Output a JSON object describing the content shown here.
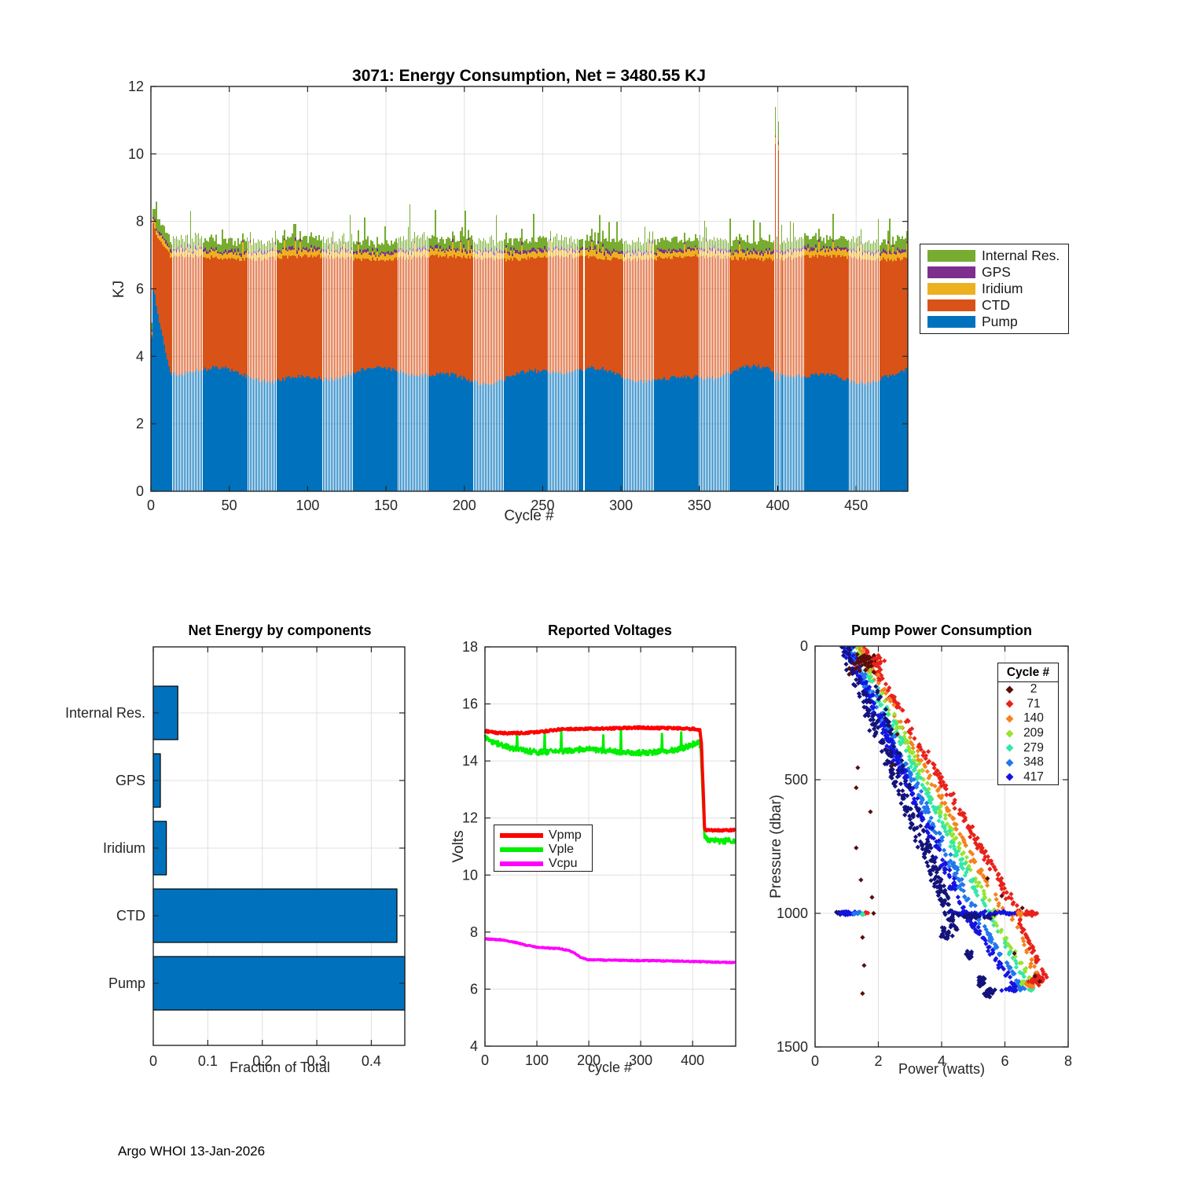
{
  "figure": {
    "footer": "Argo WHOI 13-Jan-2026"
  },
  "palette": {
    "pump": "#0072BD",
    "ctd": "#D95319",
    "iridium": "#EDB120",
    "gps": "#7E2F8E",
    "internal_res": "#77AC30",
    "vpmp": "#FF0000",
    "vple": "#00EE00",
    "vcpu": "#FF00FF",
    "axis": "#262626",
    "grid": "#E0E0E0",
    "bar_fill": "#0072BD"
  },
  "chart_data": [
    {
      "id": "energy",
      "type": "bar",
      "stacked": true,
      "title": "3071: Energy Consumption,  Net = 3480.55 KJ",
      "xlabel": "Cycle #",
      "ylabel": "KJ",
      "xlim": [
        0,
        483
      ],
      "ylim": [
        0,
        12
      ],
      "xticks": [
        0,
        50,
        100,
        150,
        200,
        250,
        300,
        350,
        400,
        450
      ],
      "yticks": [
        0,
        2,
        4,
        6,
        8,
        10,
        12
      ],
      "legend": [
        "Internal Res.",
        "GPS",
        "Iridium",
        "CTD",
        "Pump"
      ],
      "legend_colors": [
        "#77AC30",
        "#7E2F8E",
        "#EDB120",
        "#D95319",
        "#0072BD"
      ],
      "stack_order_bottom_to_top": [
        "Pump",
        "CTD",
        "Iridium",
        "GPS",
        "Internal Res."
      ],
      "generator": {
        "cycles": 483,
        "missing": [
          276
        ],
        "early_pump": [
          4.55,
          5.95,
          5.85,
          5.5,
          5.25,
          5.0,
          4.8,
          4.6,
          4.35,
          4.1,
          3.9,
          3.7
        ],
        "early_ctd_top": [
          4.62,
          7.95,
          7.8,
          7.6,
          7.5,
          7.45,
          7.4,
          7.3,
          7.25,
          7.2,
          7.15,
          7.1
        ],
        "pump_base": 3.45,
        "pump_wave1": [
          0.16,
          19
        ],
        "pump_wave2": [
          0.1,
          7.7
        ],
        "pump_noise": 0.07,
        "ctd_top_base": 6.92,
        "ctd_top_wave": [
          0.05,
          13
        ],
        "ctd_top_noise": 0.06,
        "iridium_base": 0.12,
        "iridium_noise": 0.1,
        "gps_base": 0.07,
        "gps_noise": 0.04,
        "internal_base": 0.2,
        "internal_noise": 0.2,
        "tall_spike_prob": 0.045,
        "tall_spike_add": 0.55,
        "tall_spikes": [
          {
            "cycle": 165,
            "internal": 1.3
          }
        ],
        "anomalies": [
          {
            "cycle": 398,
            "pump": 3.3,
            "ctd_top": 10.3,
            "internal": 0.85
          },
          {
            "cycle": 400,
            "pump": 3.3,
            "ctd_top": 10.1,
            "internal": 0.6
          }
        ],
        "stripe": {
          "start": 13,
          "period": 48,
          "width": 20
        }
      }
    },
    {
      "id": "components",
      "type": "bar",
      "orientation": "horizontal",
      "title": "Net Energy by components",
      "xlabel": "Fraction of Total",
      "categories_top_to_bottom": [
        "Internal Res.",
        "GPS",
        "Iridium",
        "CTD",
        "Pump"
      ],
      "values": [
        0.045,
        0.013,
        0.024,
        0.447,
        0.4614
      ],
      "xticks": [
        0,
        0.1,
        0.2,
        0.3,
        0.4
      ],
      "xlim": [
        0,
        0.4614
      ]
    },
    {
      "id": "voltages",
      "type": "line",
      "title": "Reported Voltages",
      "xlabel": "cycle #",
      "ylabel": "Volts",
      "xlim": [
        0,
        483
      ],
      "ylim": [
        4,
        18
      ],
      "xticks": [
        0,
        100,
        200,
        300,
        400
      ],
      "yticks": [
        4,
        6,
        8,
        10,
        12,
        14,
        16,
        18
      ],
      "series": [
        {
          "name": "Vple",
          "color": "#00EE00",
          "width": 3,
          "noise": 0.1,
          "anchors": [
            [
              0,
              14.82
            ],
            [
              8,
              14.72
            ],
            [
              25,
              14.6
            ],
            [
              50,
              14.45
            ],
            [
              75,
              14.38
            ],
            [
              100,
              14.3
            ],
            [
              130,
              14.32
            ],
            [
              160,
              14.35
            ],
            [
              190,
              14.42
            ],
            [
              220,
              14.38
            ],
            [
              250,
              14.33
            ],
            [
              280,
              14.3
            ],
            [
              310,
              14.28
            ],
            [
              340,
              14.32
            ],
            [
              370,
              14.4
            ],
            [
              390,
              14.5
            ],
            [
              405,
              14.62
            ],
            [
              413,
              14.68
            ],
            [
              416,
              14.3
            ],
            [
              419,
              13.0
            ],
            [
              423,
              11.35
            ],
            [
              430,
              11.25
            ],
            [
              455,
              11.18
            ],
            [
              480,
              11.22
            ]
          ],
          "spikes": [
            [
              62,
              15.0
            ],
            [
              115,
              15.0
            ],
            [
              147,
              15.05
            ],
            [
              228,
              14.9
            ],
            [
              262,
              15.1
            ],
            [
              341,
              14.95
            ],
            [
              378,
              15.0
            ]
          ]
        },
        {
          "name": "Vpmp",
          "color": "#FF0000",
          "width": 4,
          "noise": 0.035,
          "anchors": [
            [
              0,
              15.05
            ],
            [
              15,
              15.0
            ],
            [
              40,
              14.97
            ],
            [
              80,
              14.98
            ],
            [
              120,
              15.05
            ],
            [
              150,
              15.12
            ],
            [
              200,
              15.13
            ],
            [
              260,
              15.15
            ],
            [
              300,
              15.17
            ],
            [
              340,
              15.15
            ],
            [
              380,
              15.14
            ],
            [
              405,
              15.12
            ],
            [
              414,
              15.08
            ],
            [
              417,
              14.6
            ],
            [
              420,
              13.2
            ],
            [
              423,
              11.62
            ],
            [
              428,
              11.57
            ],
            [
              480,
              11.57
            ]
          ],
          "spikes": []
        },
        {
          "name": "Vcpu",
          "color": "#FF00FF",
          "width": 3.5,
          "noise": 0.018,
          "anchors": [
            [
              0,
              7.76
            ],
            [
              30,
              7.73
            ],
            [
              55,
              7.65
            ],
            [
              80,
              7.54
            ],
            [
              100,
              7.47
            ],
            [
              120,
              7.44
            ],
            [
              145,
              7.42
            ],
            [
              160,
              7.36
            ],
            [
              172,
              7.28
            ],
            [
              185,
              7.1
            ],
            [
              198,
              7.03
            ],
            [
              230,
              7.02
            ],
            [
              300,
              7.0
            ],
            [
              380,
              6.98
            ],
            [
              440,
              6.95
            ],
            [
              480,
              6.93
            ]
          ],
          "spikes": []
        }
      ],
      "legend_order": [
        "Vpmp",
        "Vple",
        "Vcpu"
      ]
    },
    {
      "id": "pump_power",
      "type": "scatter",
      "title": "Pump Power Consumption",
      "xlabel": "Power (watts)",
      "ylabel": "Pressure (dbar)",
      "xlim": [
        0,
        8
      ],
      "ylim": [
        0,
        1500
      ],
      "y_inverted": true,
      "xticks": [
        0,
        2,
        4,
        6,
        8
      ],
      "yticks": [
        0,
        500,
        1000,
        1500
      ],
      "legend_title": "Cycle #",
      "legend": [
        {
          "label": "2",
          "color": "#5A0D0D"
        },
        {
          "label": "71",
          "color": "#E8221A"
        },
        {
          "label": "140",
          "color": "#F5821E"
        },
        {
          "label": "209",
          "color": "#97E432"
        },
        {
          "label": "279",
          "color": "#33E8A5"
        },
        {
          "label": "348",
          "color": "#2277EE"
        },
        {
          "label": "417",
          "color": "#1414E0"
        }
      ],
      "streaks": [
        {
          "c": "#E8221A",
          "n": 170,
          "x0": 1.5,
          "p0": 0,
          "x1": 6.45,
          "p1": 1000,
          "jx": 0.18,
          "jp": 10
        },
        {
          "c": "#F5821E",
          "n": 110,
          "x0": 1.38,
          "p0": 0,
          "x1": 5.95,
          "p1": 1000,
          "jx": 0.15,
          "jp": 10
        },
        {
          "c": "#97E432",
          "n": 110,
          "x0": 1.3,
          "p0": 0,
          "x1": 5.65,
          "p1": 1005,
          "jx": 0.15,
          "jp": 10
        },
        {
          "c": "#33E8A5",
          "n": 120,
          "x0": 1.2,
          "p0": 0,
          "x1": 5.45,
          "p1": 1000,
          "jx": 0.15,
          "jp": 10
        },
        {
          "c": "#2277EE",
          "n": 180,
          "x0": 1.05,
          "p0": 0,
          "x1": 5.05,
          "p1": 1000,
          "jx": 0.2,
          "jp": 10
        },
        {
          "c": "#1414E0",
          "n": 200,
          "x0": 1.0,
          "p0": 0,
          "x1": 4.75,
          "p1": 1000,
          "jx": 0.22,
          "jp": 10
        },
        {
          "c": "#13137A",
          "n": 220,
          "x0": 0.9,
          "p0": 0,
          "x1": 4.4,
          "p1": 1060,
          "jx": 0.25,
          "jp": 10
        },
        {
          "c": "#13137A",
          "n": 60,
          "x0": 1.85,
          "p0": 130,
          "x1": 4.35,
          "p1": 1010,
          "jx": 0.12,
          "jp": 8
        },
        {
          "c": "#E8221A",
          "n": 35,
          "x0": 6.35,
          "p0": 1000,
          "x1": 7.3,
          "p1": 1245,
          "jx": 0.12,
          "jp": 10
        },
        {
          "c": "#F5821E",
          "n": 20,
          "x0": 6.2,
          "p0": 1000,
          "x1": 7.1,
          "p1": 1258,
          "jx": 0.1,
          "jp": 8
        },
        {
          "c": "#1414E0",
          "n": 55,
          "x0": 4.75,
          "p0": 1000,
          "x1": 6.4,
          "p1": 1288,
          "jx": 0.15,
          "jp": 10
        },
        {
          "c": "#2277EE",
          "n": 40,
          "x0": 5.05,
          "p0": 1000,
          "x1": 6.55,
          "p1": 1282,
          "jx": 0.12,
          "jp": 10
        },
        {
          "c": "#33E8A5",
          "n": 25,
          "x0": 5.45,
          "p0": 1000,
          "x1": 6.8,
          "p1": 1280,
          "jx": 0.1,
          "jp": 8
        },
        {
          "c": "#97E432",
          "n": 20,
          "x0": 5.6,
          "p0": 1005,
          "x1": 6.9,
          "p1": 1272,
          "jx": 0.1,
          "jp": 8
        },
        {
          "c": "#1414E0",
          "n": 45,
          "x0": 4.4,
          "p0": 1000,
          "x1": 6.25,
          "p1": 1000,
          "jx": 0.2,
          "jp": 12
        },
        {
          "c": "#13137A",
          "n": 35,
          "x0": 4.3,
          "p0": 1010,
          "x1": 5.6,
          "p1": 1010,
          "jx": 0.2,
          "jp": 14
        }
      ],
      "blobs": [
        {
          "c": "#5A0D0D",
          "n": 45,
          "x": 1.5,
          "p": 60,
          "rx": 0.5,
          "rp": 55
        },
        {
          "c": "#E8221A",
          "n": 12,
          "x": 2.0,
          "p": 60,
          "rx": 0.25,
          "rp": 35
        },
        {
          "c": "#13137A",
          "n": 20,
          "x": 4.15,
          "p": 1075,
          "rx": 0.3,
          "rp": 30
        },
        {
          "c": "#13137A",
          "n": 18,
          "x": 4.85,
          "p": 1160,
          "rx": 0.18,
          "rp": 25
        },
        {
          "c": "#13137A",
          "n": 22,
          "x": 5.25,
          "p": 1255,
          "rx": 0.2,
          "rp": 28
        },
        {
          "c": "#13137A",
          "n": 16,
          "x": 5.45,
          "p": 1305,
          "rx": 0.15,
          "rp": 18
        },
        {
          "c": "#13137A",
          "n": 25,
          "x": 0.85,
          "p": 1000,
          "rx": 0.25,
          "rp": 8
        },
        {
          "c": "#1414E0",
          "n": 40,
          "x": 1.0,
          "p": 1000,
          "rx": 0.35,
          "rp": 10
        },
        {
          "c": "#2277EE",
          "n": 12,
          "x": 1.35,
          "p": 1000,
          "rx": 0.2,
          "rp": 9
        },
        {
          "c": "#E8221A",
          "n": 5,
          "x": 1.62,
          "p": 1000,
          "rx": 0.12,
          "rp": 7
        },
        {
          "c": "#33E8A5",
          "n": 3,
          "x": 1.5,
          "p": 1003,
          "rx": 0.1,
          "rp": 6
        },
        {
          "c": "#F5821E",
          "n": 10,
          "x": 6.45,
          "p": 1002,
          "rx": 0.2,
          "rp": 10
        },
        {
          "c": "#E8221A",
          "n": 25,
          "x": 6.8,
          "p": 1000,
          "rx": 0.3,
          "rp": 14
        },
        {
          "c": "#1414E0",
          "n": 25,
          "x": 6.2,
          "p": 1285,
          "rx": 0.35,
          "rp": 14
        },
        {
          "c": "#2277EE",
          "n": 15,
          "x": 6.5,
          "p": 1278,
          "rx": 0.2,
          "rp": 12
        },
        {
          "c": "#33E8A5",
          "n": 10,
          "x": 6.85,
          "p": 1283,
          "rx": 0.15,
          "rp": 10
        },
        {
          "c": "#97E432",
          "n": 8,
          "x": 6.6,
          "p": 1260,
          "rx": 0.15,
          "rp": 15
        },
        {
          "c": "#F5821E",
          "n": 15,
          "x": 6.75,
          "p": 1265,
          "rx": 0.2,
          "rp": 20
        },
        {
          "c": "#E8221A",
          "n": 30,
          "x": 7.0,
          "p": 1250,
          "rx": 0.3,
          "rp": 25
        },
        {
          "c": "#13137A",
          "n": 16,
          "x": 5.55,
          "p": 1290,
          "rx": 0.25,
          "rp": 12
        }
      ],
      "extra_points_color": "#5A0D0D",
      "extra_points": [
        [
          1.35,
          455
        ],
        [
          1.3,
          530
        ],
        [
          1.75,
          620
        ],
        [
          1.3,
          755
        ],
        [
          1.45,
          875
        ],
        [
          1.8,
          940
        ],
        [
          1.85,
          1000
        ],
        [
          1.5,
          1090
        ],
        [
          1.55,
          1195
        ],
        [
          1.5,
          1300
        ],
        [
          2.6,
          330
        ],
        [
          2.45,
          445
        ],
        [
          5.45,
          870
        ],
        [
          5.9,
          935
        ],
        [
          6.3,
          1150
        ],
        [
          6.95,
          1235
        ],
        [
          7.1,
          1255
        ],
        [
          6.55,
          980
        ]
      ]
    }
  ]
}
